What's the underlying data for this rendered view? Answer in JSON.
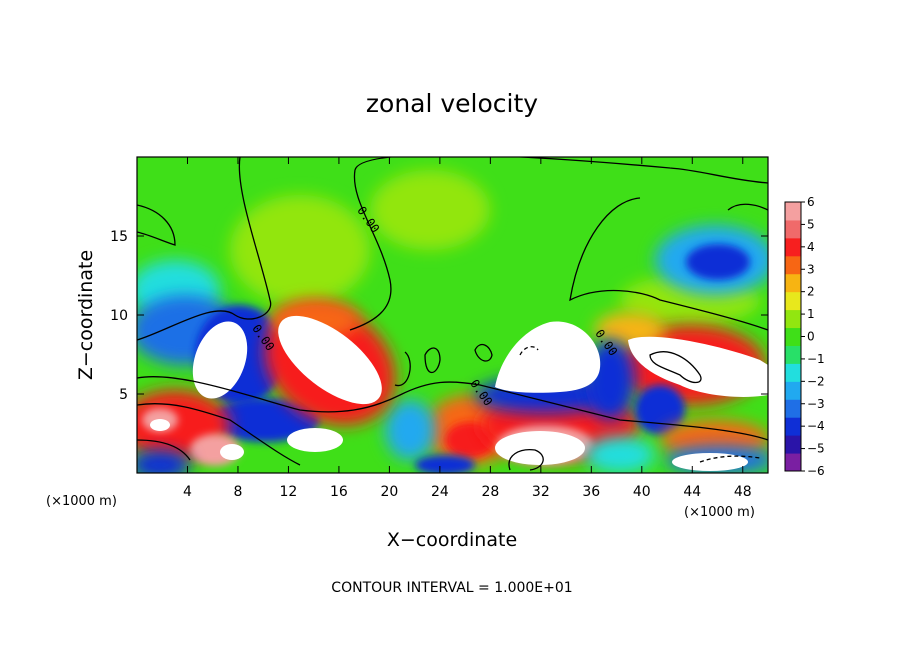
{
  "chart_data": {
    "type": "heatmap",
    "title": "zonal velocity",
    "xlabel": "X−coordinate",
    "ylabel": "Z−coordinate",
    "x_scale_note": "(×1000 m)",
    "z_scale_note": "(×1000 m)",
    "xlim": [
      0,
      50
    ],
    "ylim": [
      0,
      20
    ],
    "x_ticks": [
      4,
      8,
      12,
      16,
      20,
      24,
      28,
      32,
      36,
      40,
      44,
      48
    ],
    "y_ticks": [
      5,
      10,
      15
    ],
    "colorbar": {
      "min": -6,
      "max": 6,
      "ticks": [
        "6",
        "5",
        "4",
        "3",
        "2",
        "1",
        "0",
        "−1",
        "−2",
        "−3",
        "−4",
        "−5",
        "−6"
      ],
      "colors": [
        "#7a1fa2",
        "#2a14a8",
        "#0f2fd6",
        "#1f6fe6",
        "#21a9f0",
        "#22dede",
        "#28e068",
        "#3fdf18",
        "#92e610",
        "#e8e81c",
        "#f7b412",
        "#f76614",
        "#f71f1f",
        "#f06a6a",
        "#f4a0a0"
      ]
    },
    "contour_labels": [
      "0.00",
      "0.00",
      "0.00",
      "0.00"
    ],
    "contour_interval_text": "CONTOUR INTERVAL = 1.000E+01"
  }
}
